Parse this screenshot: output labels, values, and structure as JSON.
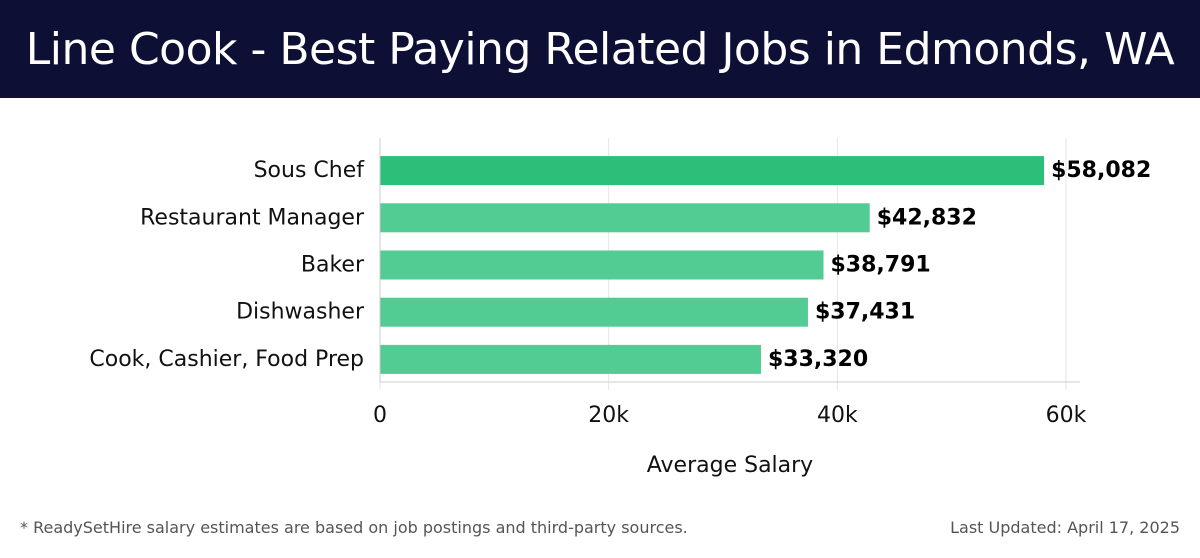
{
  "header": {
    "title": "Line Cook - Best Paying Related Jobs in Edmonds, WA"
  },
  "chart_data": {
    "type": "bar",
    "orientation": "horizontal",
    "categories": [
      "Sous Chef",
      "Restaurant Manager",
      "Baker",
      "Dishwasher",
      "Cook, Cashier, Food Prep"
    ],
    "values": [
      58082,
      42832,
      38791,
      37431,
      33320
    ],
    "value_labels": [
      "$58,082",
      "$42,832",
      "$38,791",
      "$37,431",
      "$33,320"
    ],
    "xlabel": "Average Salary",
    "ylabel": "",
    "xlim": [
      0,
      60000
    ],
    "xticks": [
      0,
      20000,
      40000,
      60000
    ],
    "xtick_labels": [
      "0",
      "20k",
      "40k",
      "60k"
    ],
    "grid": true,
    "colors": {
      "top_bar": "#2bbf7a",
      "bars": "#52cc92",
      "grid": "#e6e6e6",
      "axis": "#cccccc"
    }
  },
  "footer": {
    "note": "* ReadySetHire salary estimates are based on job postings and third-party sources.",
    "updated": "Last Updated: April 17, 2025"
  },
  "colors": {
    "header_bg": "#0d0f35",
    "header_text": "#ffffff"
  }
}
